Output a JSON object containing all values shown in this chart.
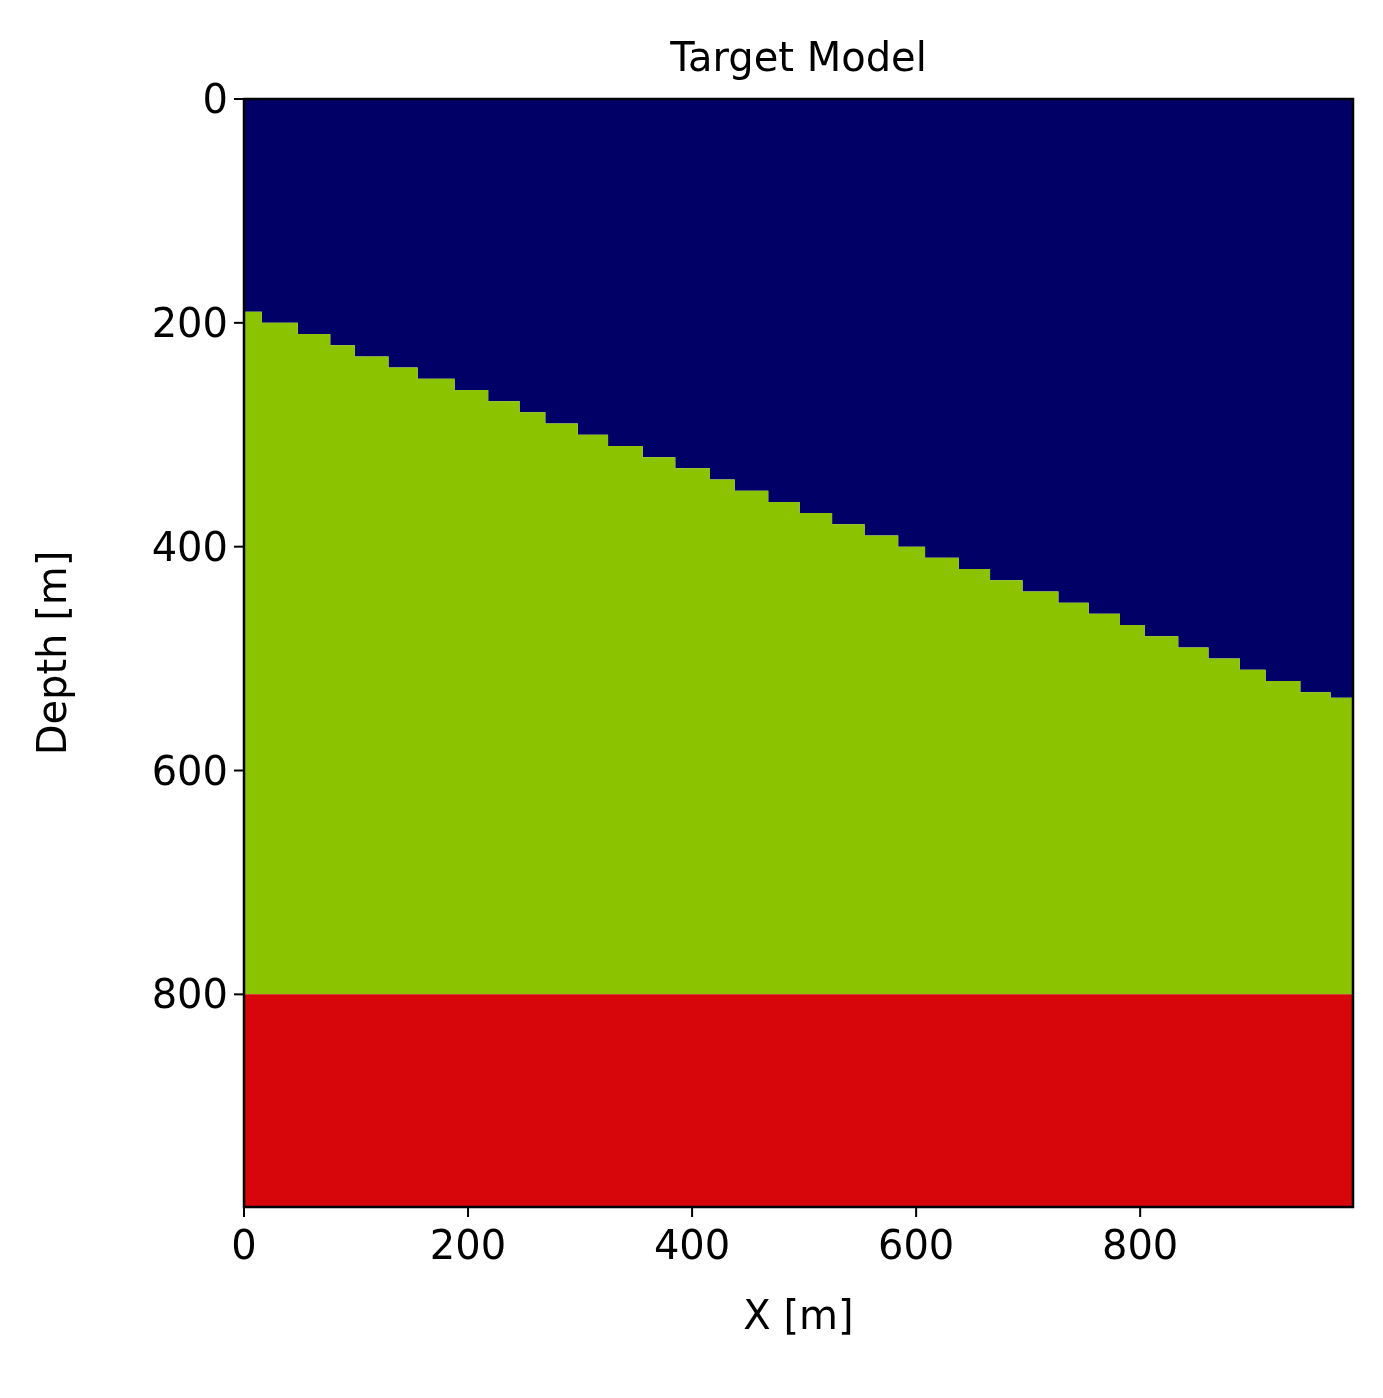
{
  "chart_data": {
    "type": "area",
    "title": "Target Model",
    "xlabel": "X [m]",
    "ylabel": "Depth [m]",
    "stacked": true,
    "x": [
      0,
      16,
      48,
      77,
      99,
      129,
      155,
      188,
      218,
      246,
      269,
      298,
      325,
      356,
      385,
      416,
      438,
      468,
      496,
      525,
      554,
      584,
      608,
      638,
      666,
      695,
      727,
      754,
      782,
      804,
      834,
      861,
      889,
      912,
      943,
      970,
      990
    ],
    "series": [
      {
        "color": "#000066",
        "values": [
          190,
          200,
          210,
          220,
          230,
          240,
          250,
          260,
          270,
          280,
          290,
          300,
          310,
          320,
          330,
          340,
          350,
          360,
          370,
          380,
          390,
          400,
          410,
          420,
          430,
          440,
          450,
          460,
          470,
          480,
          490,
          500,
          510,
          520,
          530,
          535,
          535
        ]
      },
      {
        "color": "#8bc300",
        "values": [
          610,
          600,
          590,
          580,
          570,
          560,
          550,
          540,
          530,
          520,
          510,
          500,
          490,
          480,
          470,
          460,
          450,
          440,
          430,
          420,
          410,
          400,
          390,
          380,
          370,
          360,
          350,
          340,
          330,
          320,
          310,
          300,
          290,
          280,
          270,
          265,
          265
        ]
      },
      {
        "color": "#d7060b",
        "values": [
          190,
          190,
          190,
          190,
          190,
          190,
          190,
          190,
          190,
          190,
          190,
          190,
          190,
          190,
          190,
          190,
          190,
          190,
          190,
          190,
          190,
          190,
          190,
          190,
          190,
          190,
          190,
          190,
          190,
          190,
          190,
          190,
          190,
          190,
          190,
          190,
          190
        ]
      }
    ],
    "xlim": [
      0,
      990
    ],
    "ylim": [
      990,
      0
    ],
    "xticks": [
      0,
      200,
      400,
      600,
      800
    ],
    "yticks": [
      0,
      200,
      400,
      600,
      800
    ]
  }
}
